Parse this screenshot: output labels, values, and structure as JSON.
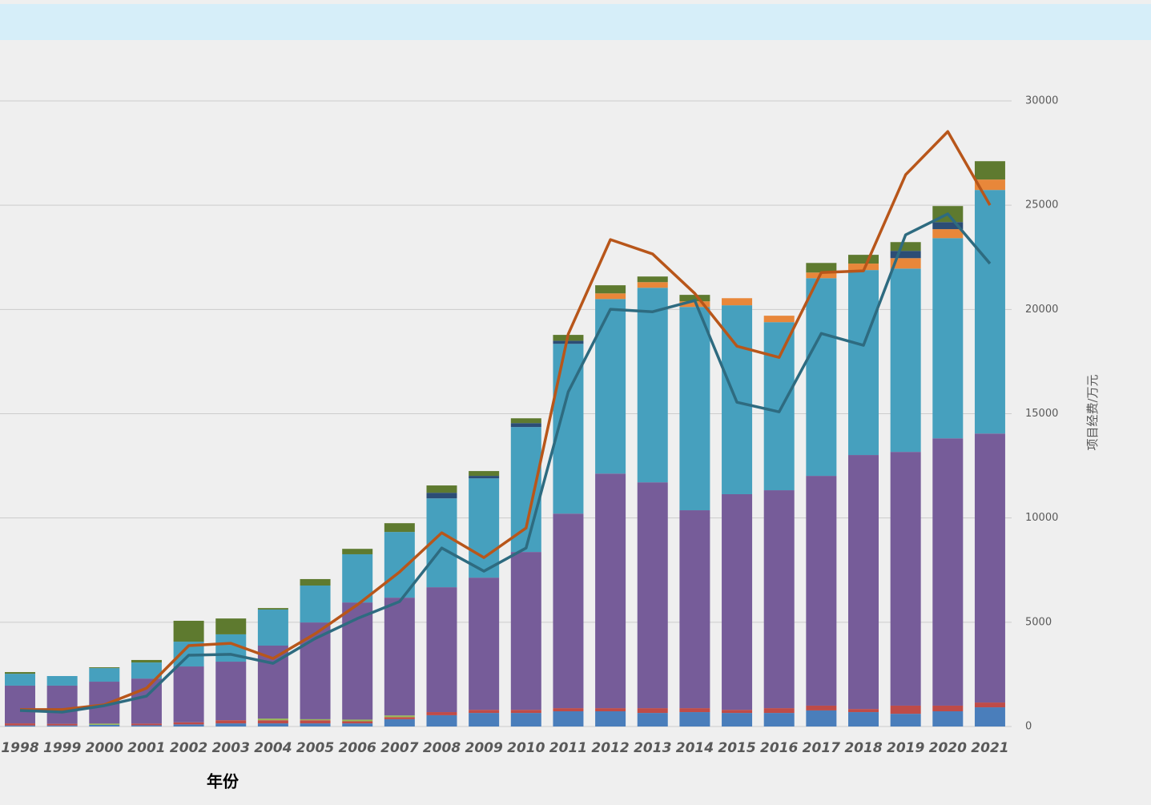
{
  "chart_data": {
    "type": "stacked-bar-line",
    "y_label": "项目经费/万元",
    "x_label": "年份",
    "ylim": [
      0,
      30000
    ],
    "yticks": [
      0,
      5000,
      10000,
      15000,
      20000,
      25000,
      30000
    ],
    "grid": true,
    "categories": [
      "1998",
      "1999",
      "2000",
      "2001",
      "2002",
      "2003",
      "2004",
      "2005",
      "2006",
      "2007",
      "2008",
      "2009",
      "2010",
      "2011",
      "2012",
      "2013",
      "2014",
      "2015",
      "2016",
      "2017",
      "2018",
      "2019",
      "2020",
      "2021"
    ],
    "series": [
      {
        "color": "#4a7ebb",
        "values": [
          50,
          50,
          80,
          60,
          100,
          150,
          150,
          150,
          150,
          350,
          540,
          650,
          650,
          730,
          730,
          650,
          690,
          650,
          650,
          770,
          690,
          610,
          730,
          920
        ]
      },
      {
        "color": "#be4b48",
        "values": [
          100,
          80,
          0,
          80,
          100,
          150,
          150,
          150,
          100,
          100,
          150,
          150,
          150,
          150,
          150,
          230,
          190,
          150,
          230,
          230,
          150,
          390,
          270,
          230
        ]
      },
      {
        "color": "#98b954",
        "values": [
          0,
          0,
          60,
          0,
          0,
          0,
          80,
          50,
          80,
          80,
          0,
          0,
          0,
          0,
          0,
          0,
          0,
          0,
          0,
          0,
          0,
          0,
          0,
          0
        ]
      },
      {
        "color": "#765c99",
        "values": [
          1810,
          1830,
          2010,
          2160,
          2680,
          2810,
          3500,
          4640,
          5620,
          5650,
          5990,
          6340,
          7570,
          9330,
          11250,
          10830,
          9490,
          10340,
          10450,
          11020,
          12180,
          12170,
          12820,
          12900
        ]
      },
      {
        "color": "#46a0be",
        "values": [
          570,
          460,
          650,
          770,
          1190,
          1310,
          1730,
          1770,
          2310,
          3150,
          4260,
          4760,
          5990,
          8140,
          8370,
          9330,
          9750,
          9060,
          8060,
          9480,
          8870,
          8790,
          9600,
          11680
        ]
      },
      {
        "color": "#e8873a",
        "values": [
          0,
          0,
          0,
          0,
          0,
          0,
          0,
          0,
          0,
          0,
          0,
          0,
          0,
          0,
          270,
          270,
          270,
          340,
          310,
          270,
          310,
          500,
          430,
          500
        ]
      },
      {
        "color": "#2c4d75",
        "values": [
          0,
          0,
          0,
          0,
          0,
          0,
          0,
          0,
          0,
          0,
          270,
          120,
          190,
          150,
          0,
          0,
          0,
          0,
          0,
          0,
          0,
          350,
          340,
          0
        ]
      },
      {
        "color": "#5e7a2f",
        "values": [
          80,
          0,
          40,
          120,
          1000,
          760,
          70,
          310,
          260,
          420,
          350,
          230,
          230,
          280,
          390,
          270,
          310,
          0,
          0,
          460,
          420,
          420,
          770,
          880
        ]
      }
    ],
    "lines": [
      {
        "color": "#b8561a",
        "values": [
          810,
          810,
          1040,
          1840,
          3880,
          3990,
          3260,
          4450,
          5840,
          7410,
          9290,
          8100,
          9520,
          18820,
          23350,
          22660,
          20770,
          18240,
          17700,
          21770,
          21850,
          26460,
          28530,
          25000
        ]
      },
      {
        "color": "#2e6b80",
        "values": [
          770,
          690,
          1000,
          1460,
          3420,
          3460,
          3030,
          4220,
          5180,
          5990,
          8560,
          7450,
          8560,
          16050,
          20010,
          19890,
          20430,
          15550,
          15090,
          18850,
          18280,
          23580,
          24580,
          22200
        ]
      }
    ]
  }
}
